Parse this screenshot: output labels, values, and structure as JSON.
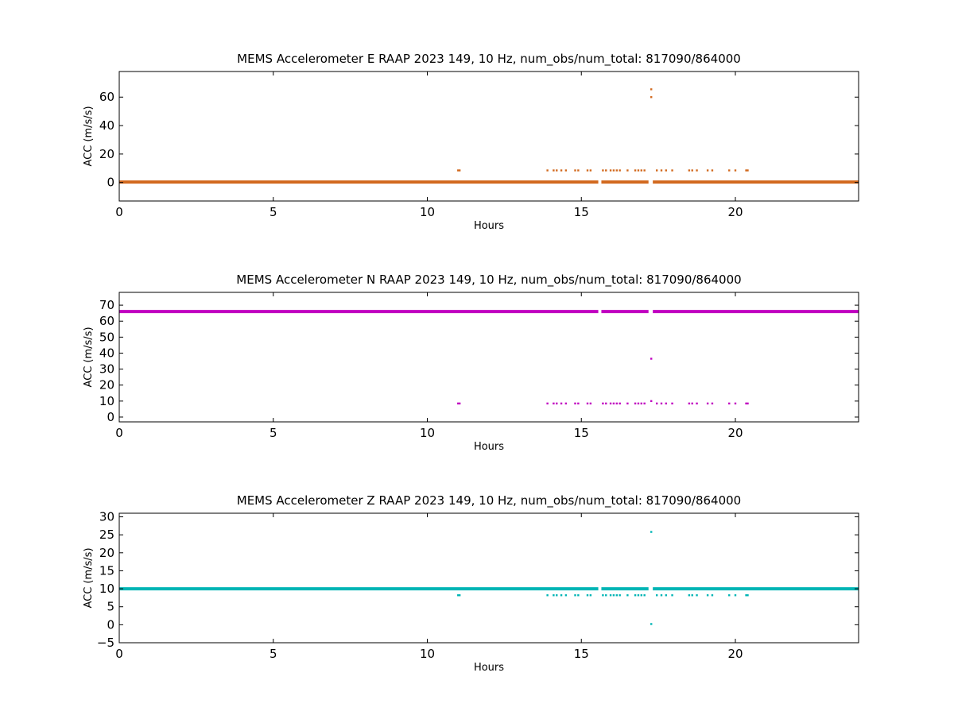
{
  "chart_data": [
    {
      "type": "scatter",
      "title": "MEMS Accelerometer E RAAP 2023 149, 10 Hz, num_obs/num_total: 817090/864000",
      "xlabel": "Hours",
      "ylabel": "ACC (m/s/s)",
      "xlim": [
        0,
        24
      ],
      "ylim": [
        -13,
        78
      ],
      "xticks": [
        0,
        5,
        10,
        15,
        20
      ],
      "yticks": [
        0,
        20,
        40,
        60
      ],
      "color": "#d2691e",
      "baseline": {
        "value": 0.3,
        "x_range": [
          0,
          24
        ]
      },
      "gaps": [
        [
          15.55,
          15.65
        ],
        [
          17.18,
          17.32
        ]
      ],
      "series": [
        {
          "values": [
            [
              11.0,
              8.5
            ],
            [
              11.05,
              8.5
            ],
            [
              13.9,
              8.5
            ],
            [
              14.1,
              8.5
            ],
            [
              14.2,
              8.5
            ],
            [
              14.35,
              8.5
            ],
            [
              14.5,
              8.5
            ],
            [
              14.8,
              8.5
            ],
            [
              14.9,
              8.5
            ],
            [
              15.2,
              8.5
            ],
            [
              15.3,
              8.5
            ],
            [
              15.7,
              8.5
            ],
            [
              15.8,
              8.5
            ],
            [
              15.95,
              8.5
            ],
            [
              16.05,
              8.5
            ],
            [
              16.15,
              8.5
            ],
            [
              16.25,
              8.5
            ],
            [
              16.5,
              8.5
            ],
            [
              16.75,
              8.5
            ],
            [
              16.85,
              8.5
            ],
            [
              16.95,
              8.5
            ],
            [
              17.05,
              8.5
            ],
            [
              17.45,
              8.5
            ],
            [
              17.6,
              8.5
            ],
            [
              17.75,
              8.5
            ],
            [
              17.95,
              8.5
            ],
            [
              18.5,
              8.5
            ],
            [
              18.6,
              8.5
            ],
            [
              18.75,
              8.5
            ],
            [
              19.1,
              8.5
            ],
            [
              19.25,
              8.5
            ],
            [
              19.8,
              8.5
            ],
            [
              20.0,
              8.5
            ],
            [
              20.35,
              8.5
            ],
            [
              20.4,
              8.5
            ],
            [
              17.27,
              65.5
            ],
            [
              17.27,
              60.0
            ]
          ]
        }
      ]
    },
    {
      "type": "scatter",
      "title": "MEMS Accelerometer N RAAP 2023 149, 10 Hz, num_obs/num_total: 817090/864000",
      "xlabel": "Hours",
      "ylabel": "ACC (m/s/s)",
      "xlim": [
        0,
        24
      ],
      "ylim": [
        -3,
        78
      ],
      "xticks": [
        0,
        5,
        10,
        15,
        20
      ],
      "yticks": [
        0,
        10,
        20,
        30,
        40,
        50,
        60,
        70
      ],
      "color": "#c000c0",
      "baseline": {
        "value": 66,
        "x_range": [
          0,
          24
        ]
      },
      "gaps": [
        [
          15.55,
          15.65
        ],
        [
          17.18,
          17.32
        ]
      ],
      "series": [
        {
          "values": [
            [
              11.0,
              8.5
            ],
            [
              11.05,
              8.5
            ],
            [
              13.9,
              8.5
            ],
            [
              14.1,
              8.5
            ],
            [
              14.2,
              8.5
            ],
            [
              14.35,
              8.5
            ],
            [
              14.5,
              8.5
            ],
            [
              14.8,
              8.5
            ],
            [
              14.9,
              8.5
            ],
            [
              15.2,
              8.5
            ],
            [
              15.3,
              8.5
            ],
            [
              15.7,
              8.5
            ],
            [
              15.8,
              8.5
            ],
            [
              15.95,
              8.5
            ],
            [
              16.05,
              8.5
            ],
            [
              16.15,
              8.5
            ],
            [
              16.25,
              8.5
            ],
            [
              16.5,
              8.5
            ],
            [
              16.75,
              8.5
            ],
            [
              16.85,
              8.5
            ],
            [
              16.95,
              8.5
            ],
            [
              17.05,
              8.5
            ],
            [
              17.45,
              8.5
            ],
            [
              17.6,
              8.5
            ],
            [
              17.75,
              8.5
            ],
            [
              17.95,
              8.5
            ],
            [
              18.5,
              8.5
            ],
            [
              18.6,
              8.5
            ],
            [
              18.75,
              8.5
            ],
            [
              19.1,
              8.5
            ],
            [
              19.25,
              8.5
            ],
            [
              19.8,
              8.5
            ],
            [
              20.0,
              8.5
            ],
            [
              20.35,
              8.5
            ],
            [
              20.4,
              8.5
            ],
            [
              17.27,
              36.5
            ],
            [
              17.27,
              10.0
            ]
          ]
        }
      ]
    },
    {
      "type": "scatter",
      "title": "MEMS Accelerometer Z RAAP 2023 149, 10 Hz, num_obs/num_total: 817090/864000",
      "xlabel": "Hours",
      "ylabel": "ACC (m/s/s)",
      "xlim": [
        0,
        24
      ],
      "ylim": [
        -5,
        31
      ],
      "xticks": [
        0,
        5,
        10,
        15,
        20
      ],
      "yticks": [
        -5,
        0,
        5,
        10,
        15,
        20,
        25,
        30
      ],
      "color": "#00b5b5",
      "baseline": {
        "value": 10,
        "x_range": [
          0,
          24
        ]
      },
      "gaps": [
        [
          15.55,
          15.65
        ],
        [
          17.18,
          17.32
        ]
      ],
      "series": [
        {
          "values": [
            [
              11.0,
              8.2
            ],
            [
              11.05,
              8.2
            ],
            [
              13.9,
              8.2
            ],
            [
              14.1,
              8.2
            ],
            [
              14.2,
              8.2
            ],
            [
              14.35,
              8.2
            ],
            [
              14.5,
              8.2
            ],
            [
              14.8,
              8.2
            ],
            [
              14.9,
              8.2
            ],
            [
              15.2,
              8.2
            ],
            [
              15.3,
              8.2
            ],
            [
              15.7,
              8.2
            ],
            [
              15.8,
              8.2
            ],
            [
              15.95,
              8.2
            ],
            [
              16.05,
              8.2
            ],
            [
              16.15,
              8.2
            ],
            [
              16.25,
              8.2
            ],
            [
              16.5,
              8.2
            ],
            [
              16.75,
              8.2
            ],
            [
              16.85,
              8.2
            ],
            [
              16.95,
              8.2
            ],
            [
              17.05,
              8.2
            ],
            [
              17.45,
              8.2
            ],
            [
              17.6,
              8.2
            ],
            [
              17.75,
              8.2
            ],
            [
              17.95,
              8.2
            ],
            [
              18.5,
              8.2
            ],
            [
              18.6,
              8.2
            ],
            [
              18.75,
              8.2
            ],
            [
              19.1,
              8.2
            ],
            [
              19.25,
              8.2
            ],
            [
              19.8,
              8.2
            ],
            [
              20.0,
              8.2
            ],
            [
              20.35,
              8.2
            ],
            [
              20.4,
              8.2
            ],
            [
              17.27,
              25.8
            ],
            [
              17.27,
              0.2
            ]
          ]
        }
      ]
    }
  ]
}
